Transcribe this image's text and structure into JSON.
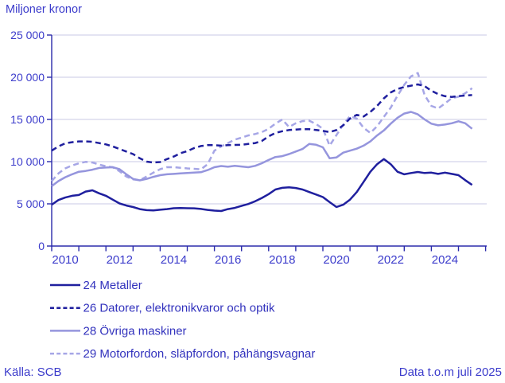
{
  "title": "Miljoner kronor",
  "footer": {
    "source": "Källa: SCB",
    "note": "Data t.o.m juli 2025"
  },
  "colors": {
    "text": "#3b3bcb",
    "legend_text": "#3232bd",
    "axis": "#2b2bab",
    "grid": "#c9c9e4",
    "background": "#ffffff",
    "dark_series": "#1f1f9e",
    "light_series": "#9595dd",
    "lighter_series": "#a6a6e6"
  },
  "chart_data": {
    "type": "line",
    "title": "Miljoner kronor",
    "xlabel": "",
    "ylabel": "Miljoner kronor",
    "xlim": [
      2010,
      2026
    ],
    "ylim": [
      0,
      25000
    ],
    "grid": "horizontal",
    "legend_position": "bottom-left",
    "x_start": 2010.0,
    "x_step": 0.25,
    "x_end": 2025.5,
    "x_tick_years": [
      2010,
      2011,
      2012,
      2013,
      2014,
      2015,
      2016,
      2017,
      2018,
      2019,
      2020,
      2021,
      2022,
      2023,
      2024,
      2025,
      2026
    ],
    "x_tick_labels": [
      "2010",
      "2012",
      "2014",
      "2016",
      "2018",
      "2020",
      "2022",
      "2024"
    ],
    "x_label_years": [
      2010,
      2012,
      2014,
      2016,
      2018,
      2020,
      2022,
      2024
    ],
    "y_ticks": [
      0,
      5000,
      10000,
      15000,
      20000,
      25000
    ],
    "y_tick_labels": [
      "0",
      "5 000",
      "10 000",
      "15 000",
      "20 000",
      "25 000"
    ],
    "series": [
      {
        "id": "24-metaller",
        "name": "24 Metaller",
        "color": "#1f1f9e",
        "dash": "solid",
        "values": [
          4900,
          5450,
          5750,
          5950,
          6050,
          6450,
          6600,
          6250,
          5950,
          5500,
          5050,
          4800,
          4620,
          4380,
          4250,
          4220,
          4300,
          4380,
          4480,
          4500,
          4480,
          4470,
          4400,
          4280,
          4200,
          4150,
          4380,
          4520,
          4750,
          4980,
          5300,
          5700,
          6150,
          6700,
          6900,
          6950,
          6880,
          6700,
          6400,
          6100,
          5800,
          5200,
          4620,
          4900,
          5500,
          6400,
          7600,
          8800,
          9700,
          10300,
          9700,
          8800,
          8500,
          8650,
          8770,
          8650,
          8700,
          8550,
          8700,
          8550,
          8400,
          7800,
          7250
        ]
      },
      {
        "id": "26-datorer-elektronikvaror-och-optik",
        "name": "26 Datorer, elektronikvaror och optik",
        "color": "#1f1f9e",
        "dash": "dashed",
        "values": [
          11300,
          11800,
          12170,
          12300,
          12400,
          12400,
          12350,
          12200,
          12050,
          11800,
          11500,
          11200,
          10900,
          10400,
          10000,
          9900,
          9950,
          10300,
          10600,
          11000,
          11250,
          11600,
          11850,
          11950,
          11950,
          11900,
          11950,
          11980,
          12000,
          12100,
          12200,
          12450,
          13000,
          13400,
          13600,
          13750,
          13800,
          13850,
          13850,
          13750,
          13650,
          13500,
          13750,
          14300,
          15100,
          15550,
          15350,
          15900,
          16600,
          17500,
          18200,
          18600,
          18850,
          19000,
          19150,
          18950,
          18400,
          18000,
          17750,
          17670,
          17760,
          17830,
          17890
        ]
      },
      {
        "id": "28-ovriga-maskiner",
        "name": "28 Övriga maskiner",
        "color": "#9595dd",
        "dash": "solid",
        "values": [
          7100,
          7700,
          8150,
          8500,
          8800,
          8900,
          9050,
          9250,
          9300,
          9340,
          9100,
          8500,
          7950,
          7780,
          7950,
          8200,
          8400,
          8500,
          8550,
          8600,
          8650,
          8700,
          8750,
          9000,
          9340,
          9480,
          9400,
          9500,
          9420,
          9340,
          9500,
          9810,
          10200,
          10550,
          10650,
          10900,
          11200,
          11500,
          12100,
          12000,
          11700,
          10400,
          10500,
          11070,
          11300,
          11540,
          11900,
          12400,
          13100,
          13700,
          14500,
          15200,
          15700,
          15900,
          15600,
          15000,
          14500,
          14300,
          14400,
          14550,
          14780,
          14550,
          13900
        ]
      },
      {
        "id": "29-motorfordon-slapfordon-pahangsvagnar",
        "name": "29 Motorfordon, släpfordon, påhängsvagnar",
        "color": "#a6a6e6",
        "dash": "dashed",
        "values": [
          7700,
          8600,
          9200,
          9550,
          9800,
          9970,
          9900,
          9650,
          9450,
          9340,
          8870,
          8240,
          7900,
          7800,
          8240,
          8700,
          9100,
          9340,
          9340,
          9270,
          9200,
          9150,
          9085,
          9700,
          11300,
          11800,
          12200,
          12600,
          12850,
          13100,
          13270,
          13500,
          13900,
          14500,
          15000,
          14100,
          14550,
          14800,
          14850,
          14450,
          13900,
          11900,
          13150,
          14400,
          15400,
          15100,
          14000,
          13400,
          14200,
          15300,
          16400,
          17800,
          19100,
          20100,
          20500,
          17900,
          16600,
          16300,
          16900,
          17520,
          17700,
          18100,
          18700
        ]
      }
    ]
  }
}
